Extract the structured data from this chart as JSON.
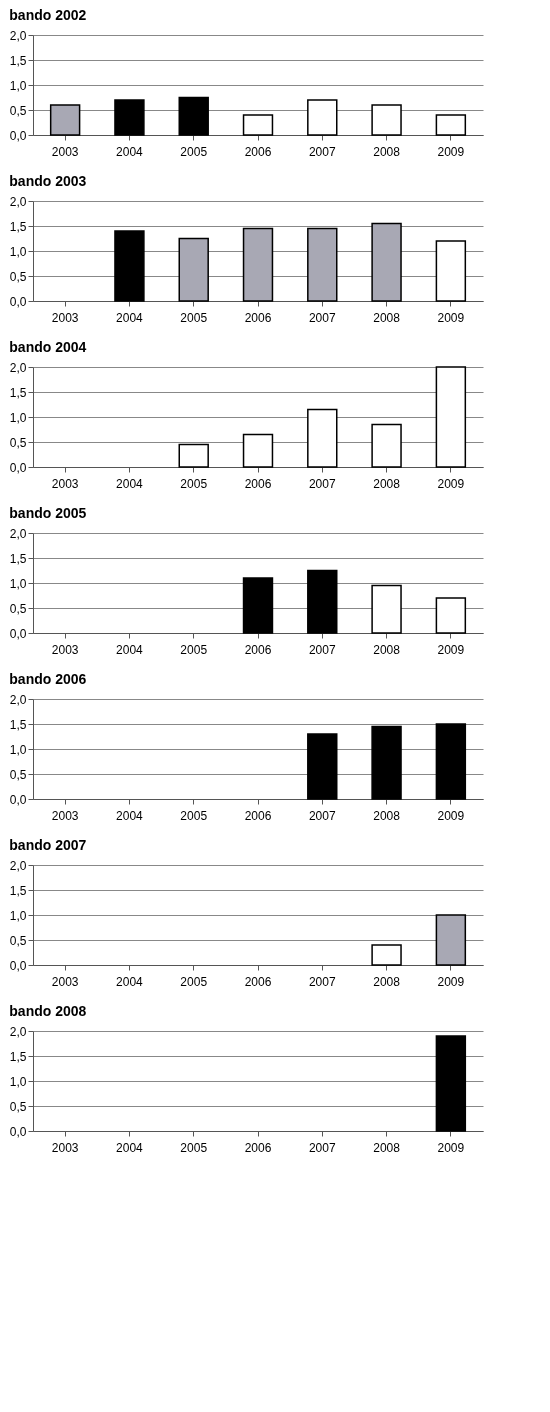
{
  "chart_data": [
    {
      "type": "bar",
      "title": "bando 2002",
      "categories": [
        "2003",
        "2004",
        "2005",
        "2006",
        "2007",
        "2008",
        "2009"
      ],
      "values": [
        0.6,
        0.7,
        0.75,
        0.4,
        0.7,
        0.6,
        0.4
      ],
      "colors": [
        "#a8a8b4",
        "#000000",
        "#000000",
        "#ffffff",
        "#ffffff",
        "#ffffff",
        "#ffffff"
      ],
      "ylim": [
        0,
        2
      ],
      "yticks": [
        {
          "value": 0,
          "label": "0,0"
        },
        {
          "value": 0.5,
          "label": "0,5"
        },
        {
          "value": 1,
          "label": "1,0"
        },
        {
          "value": 1.5,
          "label": "1,5"
        },
        {
          "value": 2,
          "label": "2,0"
        }
      ],
      "grid": "y"
    },
    {
      "type": "bar",
      "title": "bando 2003",
      "categories": [
        "2003",
        "2004",
        "2005",
        "2006",
        "2007",
        "2008",
        "2009"
      ],
      "values": [
        null,
        1.4,
        1.25,
        1.45,
        1.45,
        1.55,
        1.2
      ],
      "colors": [
        null,
        "#000000",
        "#a8a8b4",
        "#a8a8b4",
        "#a8a8b4",
        "#a8a8b4",
        "#ffffff"
      ],
      "ylim": [
        0,
        2
      ],
      "yticks": [
        {
          "value": 0,
          "label": "0,0"
        },
        {
          "value": 0.5,
          "label": "0,5"
        },
        {
          "value": 1,
          "label": "1,0"
        },
        {
          "value": 1.5,
          "label": "1,5"
        },
        {
          "value": 2,
          "label": "2,0"
        }
      ],
      "grid": "y"
    },
    {
      "type": "bar",
      "title": "bando 2004",
      "categories": [
        "2003",
        "2004",
        "2005",
        "2006",
        "2007",
        "2008",
        "2009"
      ],
      "values": [
        null,
        null,
        0.45,
        0.65,
        1.15,
        0.85,
        2.0
      ],
      "colors": [
        null,
        null,
        "#ffffff",
        "#ffffff",
        "#ffffff",
        "#ffffff",
        "#ffffff"
      ],
      "ylim": [
        0,
        2
      ],
      "yticks": [
        {
          "value": 0,
          "label": "0,0"
        },
        {
          "value": 0.5,
          "label": "0,5"
        },
        {
          "value": 1,
          "label": "1,0"
        },
        {
          "value": 1.5,
          "label": "1,5"
        },
        {
          "value": 2,
          "label": "2,0"
        }
      ],
      "grid": "y"
    },
    {
      "type": "bar",
      "title": "bando 2005",
      "categories": [
        "2003",
        "2004",
        "2005",
        "2006",
        "2007",
        "2008",
        "2009"
      ],
      "values": [
        null,
        null,
        null,
        1.1,
        1.25,
        0.95,
        0.7
      ],
      "colors": [
        null,
        null,
        null,
        "#000000",
        "#000000",
        "#ffffff",
        "#ffffff"
      ],
      "ylim": [
        0,
        2
      ],
      "yticks": [
        {
          "value": 0,
          "label": "0,0"
        },
        {
          "value": 0.5,
          "label": "0,5"
        },
        {
          "value": 1,
          "label": "1,0"
        },
        {
          "value": 1.5,
          "label": "1,5"
        },
        {
          "value": 2,
          "label": "2,0"
        }
      ],
      "grid": "y"
    },
    {
      "type": "bar",
      "title": "bando 2006",
      "categories": [
        "2003",
        "2004",
        "2005",
        "2006",
        "2007",
        "2008",
        "2009"
      ],
      "values": [
        null,
        null,
        null,
        null,
        1.3,
        1.45,
        1.5
      ],
      "colors": [
        null,
        null,
        null,
        null,
        "#000000",
        "#000000",
        "#000000"
      ],
      "ylim": [
        0,
        2
      ],
      "yticks": [
        {
          "value": 0,
          "label": "0,0"
        },
        {
          "value": 0.5,
          "label": "0,5"
        },
        {
          "value": 1,
          "label": "1,0"
        },
        {
          "value": 1.5,
          "label": "1,5"
        },
        {
          "value": 2,
          "label": "2,0"
        }
      ],
      "grid": "y"
    },
    {
      "type": "bar",
      "title": "bando 2007",
      "categories": [
        "2003",
        "2004",
        "2005",
        "2006",
        "2007",
        "2008",
        "2009"
      ],
      "values": [
        null,
        null,
        null,
        null,
        null,
        0.4,
        1.0
      ],
      "colors": [
        null,
        null,
        null,
        null,
        null,
        "#ffffff",
        "#a8a8b4"
      ],
      "ylim": [
        0,
        2
      ],
      "yticks": [
        {
          "value": 0,
          "label": "0,0"
        },
        {
          "value": 0.5,
          "label": "0,5"
        },
        {
          "value": 1,
          "label": "1,0"
        },
        {
          "value": 1.5,
          "label": "1,5"
        },
        {
          "value": 2,
          "label": "2,0"
        }
      ],
      "grid": "y"
    },
    {
      "type": "bar",
      "title": "bando 2008",
      "categories": [
        "2003",
        "2004",
        "2005",
        "2006",
        "2007",
        "2008",
        "2009"
      ],
      "values": [
        null,
        null,
        null,
        null,
        null,
        null,
        1.9
      ],
      "colors": [
        null,
        null,
        null,
        null,
        null,
        null,
        "#000000"
      ],
      "ylim": [
        0,
        2
      ],
      "yticks": [
        {
          "value": 0,
          "label": "0,0"
        },
        {
          "value": 0.5,
          "label": "0,5"
        },
        {
          "value": 1,
          "label": "1,0"
        },
        {
          "value": 1.5,
          "label": "1,5"
        },
        {
          "value": 2,
          "label": "2,0"
        }
      ],
      "grid": "y"
    }
  ]
}
